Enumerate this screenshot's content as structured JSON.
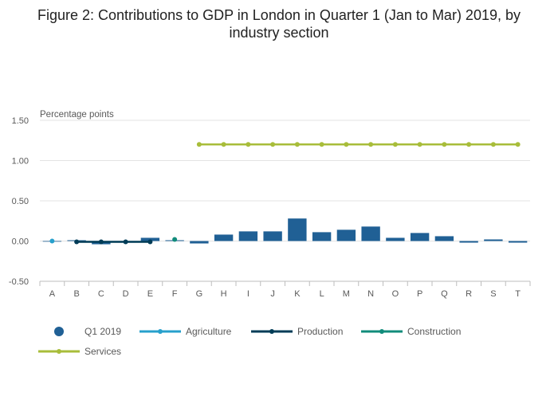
{
  "chart_data": {
    "type": "bar",
    "title": "Figure 2: Contributions to GDP in London in Quarter 1 (Jan to Mar) 2019, by industry section",
    "ylabel": "Percentage points",
    "xlabel": "",
    "categories": [
      "A",
      "B",
      "C",
      "D",
      "E",
      "F",
      "G",
      "H",
      "I",
      "J",
      "K",
      "L",
      "M",
      "N",
      "O",
      "P",
      "Q",
      "R",
      "S",
      "T"
    ],
    "ylim": [
      -0.5,
      1.5
    ],
    "yticks": [
      -0.5,
      0,
      0.5,
      1,
      1.5
    ],
    "ytick_labels": [
      "-0.50",
      "0.00",
      "0.50",
      "1.00",
      "1.50"
    ],
    "grid": true,
    "legend_position": "bottom",
    "bar_series": {
      "name": "Q1 2019",
      "color": "#206095",
      "values": [
        0.0,
        0.01,
        -0.04,
        -0.02,
        0.04,
        0.01,
        -0.03,
        0.08,
        0.12,
        0.12,
        0.28,
        0.11,
        0.14,
        0.18,
        0.04,
        0.1,
        0.06,
        -0.02,
        0.02,
        -0.02
      ]
    },
    "line_series": [
      {
        "name": "Agriculture",
        "color": "#27a0cc",
        "categories": [
          "A"
        ],
        "values": [
          0.0
        ]
      },
      {
        "name": "Production",
        "color": "#003c57",
        "categories": [
          "B",
          "C",
          "D",
          "E"
        ],
        "values": [
          -0.01,
          -0.01,
          -0.01,
          -0.01
        ]
      },
      {
        "name": "Construction",
        "color": "#118c7b",
        "categories": [
          "F"
        ],
        "values": [
          0.02
        ]
      },
      {
        "name": "Services",
        "color": "#a8bd3a",
        "categories": [
          "G",
          "H",
          "I",
          "J",
          "K",
          "L",
          "M",
          "N",
          "O",
          "P",
          "Q",
          "R",
          "S",
          "T"
        ],
        "values": [
          1.2,
          1.2,
          1.2,
          1.2,
          1.2,
          1.2,
          1.2,
          1.2,
          1.2,
          1.2,
          1.2,
          1.2,
          1.2,
          1.2
        ]
      }
    ]
  }
}
